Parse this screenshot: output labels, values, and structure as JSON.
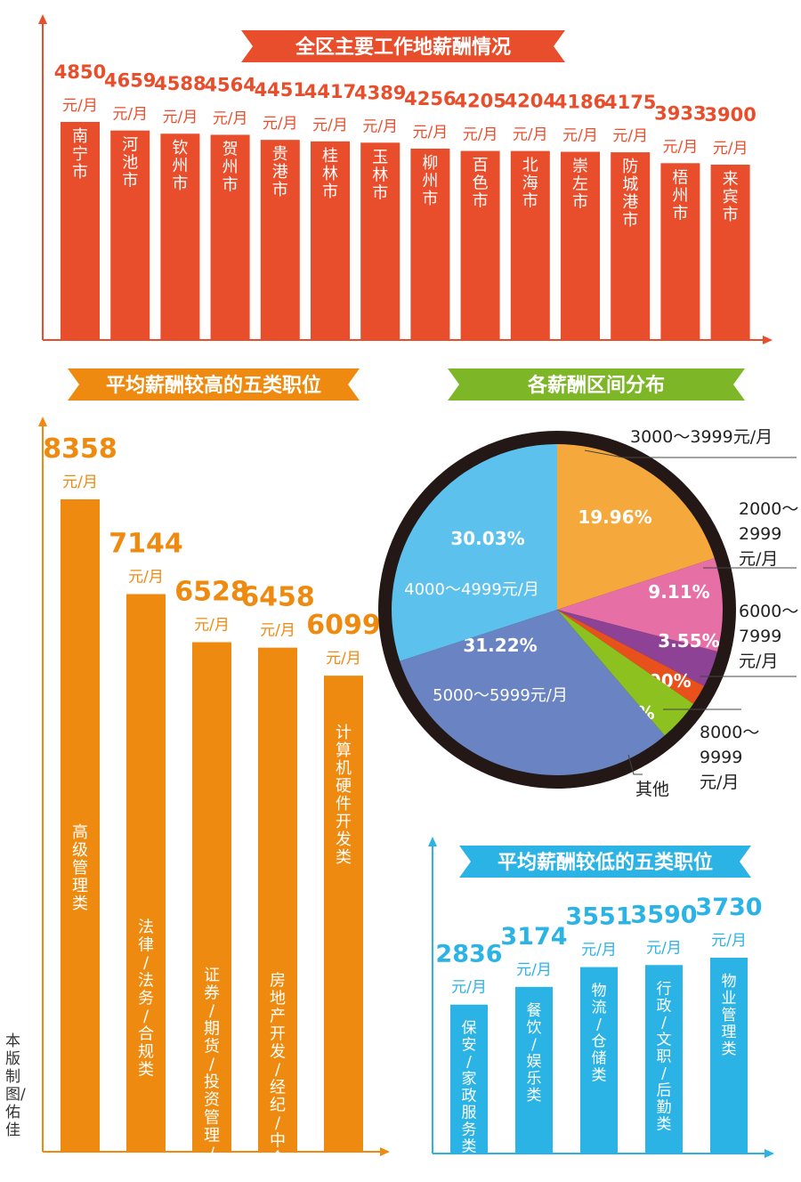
{
  "unit": "元/月",
  "credit": "本版制图/佑佳",
  "colors": {
    "city_bar": "#E94E2C",
    "high_bar": "#EE8A0F",
    "low_bar": "#2BB3E5",
    "axis_red": "#E94E2C",
    "axis_orange": "#EE8A0F",
    "axis_blue": "#2BB3E5",
    "pie_ring": "#231815"
  },
  "chart_data": [
    {
      "type": "bar",
      "title": "全区主要工作地薪酬情况",
      "categories": [
        "南宁市",
        "河池市",
        "钦州市",
        "贺州市",
        "贵港市",
        "桂林市",
        "玉林市",
        "柳州市",
        "百色市",
        "北海市",
        "崇左市",
        "防城港市",
        "梧州市",
        "来宾市"
      ],
      "values": [
        4850,
        4659,
        4588,
        4564,
        4451,
        4417,
        4389,
        4256,
        4205,
        4204,
        4186,
        4175,
        3933,
        3900
      ],
      "unit": "元/月"
    },
    {
      "type": "bar",
      "title": "平均薪酬较高的五类职位",
      "categories": [
        "高级管理类",
        "法律/法务/合规类",
        "证券/期货/投资管理/服务类",
        "房地产开发/经纪/中介类",
        "计算机硬件开发类"
      ],
      "values": [
        8358,
        7144,
        6528,
        6458,
        6099
      ],
      "unit": "元/月"
    },
    {
      "type": "pie",
      "title": "各薪酬区间分布",
      "slices": [
        {
          "label": "3000～3999元/月",
          "value": 19.96,
          "pct": "19.96%",
          "color": "#F5A93C"
        },
        {
          "label": "2000～2999元/月",
          "value": 9.11,
          "pct": "9.11%",
          "color": "#E66FA6"
        },
        {
          "label": "6000～7999元/月",
          "value": 3.55,
          "pct": "3.55%",
          "color": "#8E4296"
        },
        {
          "label": "8000～9999元/月",
          "value": 2.0,
          "pct": "2.00%",
          "color": "#E8501C"
        },
        {
          "label": "其他",
          "value": 4.13,
          "pct": "4.13%",
          "color": "#8CC11F"
        },
        {
          "label": "5000～5999元/月",
          "value": 31.22,
          "pct": "31.22%",
          "color": "#6A84C3"
        },
        {
          "label": "4000～4999元/月",
          "value": 30.03,
          "pct": "30.03%",
          "color": "#5DC1EE"
        }
      ]
    },
    {
      "type": "bar",
      "title": "平均薪酬较低的五类职位",
      "categories": [
        "保安/家政服务类",
        "餐饮/娱乐类",
        "物流/仓储类",
        "行政/文职/后勤类",
        "物业管理类"
      ],
      "values": [
        2836,
        3174,
        3551,
        3590,
        3730
      ],
      "unit": "元/月"
    }
  ]
}
